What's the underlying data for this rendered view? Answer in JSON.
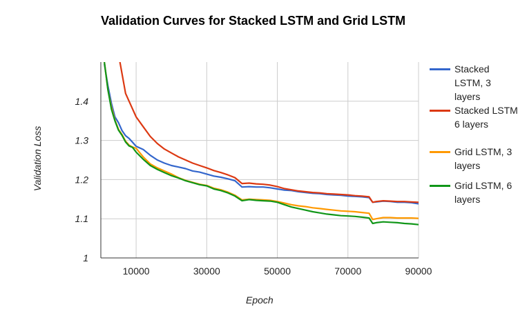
{
  "chart_data": {
    "type": "line",
    "title": "Validation Curves for Stacked LSTM and Grid LSTM",
    "xlabel": "Epoch",
    "ylabel": "Validation Loss",
    "xlim": [
      0,
      90000
    ],
    "ylim": [
      1.0,
      1.5
    ],
    "x_ticks": [
      10000,
      30000,
      50000,
      70000,
      90000
    ],
    "y_ticks": [
      1.0,
      1.1,
      1.2,
      1.3,
      1.4
    ],
    "y_tick_labels": [
      "1",
      "1.1",
      "1.2",
      "1.3",
      "1.4"
    ],
    "grid": true,
    "legend_position": "right",
    "x": [
      1000,
      2000,
      3000,
      4000,
      5000,
      6000,
      7000,
      8000,
      9000,
      10000,
      12000,
      14000,
      16000,
      18000,
      20000,
      22000,
      24000,
      26000,
      28000,
      30000,
      32000,
      34000,
      36000,
      38000,
      40000,
      42000,
      44000,
      46000,
      48000,
      50000,
      52000,
      54000,
      56000,
      58000,
      60000,
      62000,
      64000,
      66000,
      68000,
      70000,
      72000,
      74000,
      76000,
      77000,
      78000,
      80000,
      82000,
      84000,
      86000,
      88000,
      90000
    ],
    "series": [
      {
        "name": "Stacked LSTM, 3 layers",
        "color": "#3366cc",
        "values": [
          1.495,
          1.44,
          1.395,
          1.36,
          1.345,
          1.325,
          1.312,
          1.305,
          1.295,
          1.285,
          1.277,
          1.262,
          1.25,
          1.242,
          1.236,
          1.232,
          1.228,
          1.222,
          1.219,
          1.214,
          1.209,
          1.206,
          1.202,
          1.197,
          1.181,
          1.182,
          1.181,
          1.181,
          1.179,
          1.176,
          1.173,
          1.172,
          1.169,
          1.167,
          1.165,
          1.164,
          1.162,
          1.161,
          1.16,
          1.158,
          1.157,
          1.156,
          1.154,
          1.142,
          1.143,
          1.145,
          1.144,
          1.142,
          1.142,
          1.141,
          1.138
        ]
      },
      {
        "name": "Stacked LSTM 6 layers",
        "color": "#dc3912",
        "values": [
          null,
          null,
          null,
          null,
          1.52,
          1.47,
          1.42,
          1.4,
          1.38,
          1.36,
          1.335,
          1.31,
          1.292,
          1.278,
          1.268,
          1.258,
          1.25,
          1.242,
          1.236,
          1.23,
          1.223,
          1.218,
          1.212,
          1.205,
          1.19,
          1.191,
          1.189,
          1.188,
          1.186,
          1.182,
          1.177,
          1.174,
          1.171,
          1.169,
          1.167,
          1.166,
          1.164,
          1.163,
          1.162,
          1.161,
          1.159,
          1.158,
          1.156,
          1.142,
          1.144,
          1.146,
          1.145,
          1.144,
          1.144,
          1.143,
          1.142
        ]
      },
      {
        "name": "Grid LSTM, 3 layers",
        "color": "#ff9900",
        "values": [
          1.5,
          1.43,
          1.385,
          1.352,
          1.328,
          1.315,
          1.298,
          1.288,
          1.283,
          1.28,
          1.258,
          1.24,
          1.23,
          1.222,
          1.214,
          1.205,
          1.198,
          1.193,
          1.188,
          1.185,
          1.178,
          1.174,
          1.168,
          1.16,
          1.148,
          1.15,
          1.149,
          1.148,
          1.147,
          1.144,
          1.14,
          1.136,
          1.133,
          1.131,
          1.128,
          1.126,
          1.124,
          1.122,
          1.12,
          1.119,
          1.118,
          1.116,
          1.114,
          1.098,
          1.1,
          1.103,
          1.103,
          1.102,
          1.102,
          1.102,
          1.101
        ]
      },
      {
        "name": "Grid LSTM, 6 layers",
        "color": "#109618",
        "values": [
          1.5,
          1.43,
          1.38,
          1.35,
          1.326,
          1.313,
          1.296,
          1.286,
          1.282,
          1.27,
          1.252,
          1.236,
          1.226,
          1.218,
          1.21,
          1.204,
          1.197,
          1.192,
          1.187,
          1.184,
          1.176,
          1.172,
          1.166,
          1.158,
          1.146,
          1.149,
          1.147,
          1.146,
          1.145,
          1.142,
          1.136,
          1.13,
          1.126,
          1.122,
          1.118,
          1.115,
          1.112,
          1.11,
          1.108,
          1.107,
          1.106,
          1.104,
          1.102,
          1.088,
          1.09,
          1.092,
          1.091,
          1.09,
          1.088,
          1.087,
          1.085
        ]
      }
    ]
  }
}
